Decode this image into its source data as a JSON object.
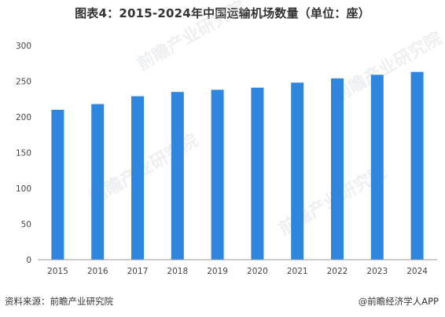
{
  "title": "图表4：2015-2024年中国运输机场数量（单位：座）",
  "source": "资料来源：前瞻产业研究院",
  "brand": "@前瞻经济学人APP",
  "watermark": "前瞻产业研究院",
  "colors": {
    "bar": "#2e86de",
    "axis": "#999999"
  },
  "chart_data": {
    "type": "bar",
    "title": "图表4：2015-2024年中国运输机场数量（单位：座）",
    "xlabel": "",
    "ylabel": "",
    "categories": [
      "2015",
      "2016",
      "2017",
      "2018",
      "2019",
      "2020",
      "2021",
      "2022",
      "2023",
      "2024"
    ],
    "values": [
      210,
      218,
      229,
      235,
      238,
      241,
      248,
      254,
      259,
      263
    ],
    "ylim": [
      0,
      300
    ],
    "yticks": [
      0,
      50,
      100,
      150,
      200,
      250,
      300
    ],
    "grid": false,
    "legend": "none"
  }
}
